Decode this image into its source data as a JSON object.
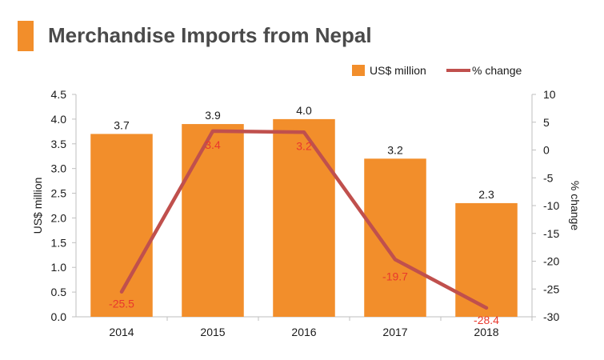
{
  "header": {
    "title": "Merchandise Imports from Nepal"
  },
  "colors": {
    "bar": "#F28E2B",
    "accent": "#F28E2B",
    "line": "#C0504D",
    "line_label": "#E8382D",
    "text": "#1a1a1a",
    "axis": "#bfbfbf"
  },
  "chart_data": {
    "type": "bar",
    "categories": [
      "2014",
      "2015",
      "2016",
      "2017",
      "2018"
    ],
    "series": [
      {
        "name": "US$ million",
        "type": "bar",
        "axis": "left",
        "values": [
          3.7,
          3.9,
          4.0,
          3.2,
          2.3
        ]
      },
      {
        "name": "% change",
        "type": "line",
        "axis": "right",
        "values": [
          -25.5,
          3.4,
          3.2,
          -19.7,
          -28.4
        ]
      }
    ],
    "bar_labels": [
      "3.7",
      "3.9",
      "4.0",
      "3.2",
      "2.3"
    ],
    "line_labels": [
      "-25.5",
      "3.4",
      "3.2",
      "-19.7",
      "-28.4"
    ],
    "ylabel": "US$ million",
    "ylabel_right": "% change",
    "ylim": [
      0,
      4.5
    ],
    "ylim_right": [
      -30,
      10
    ],
    "yticks": [
      "0.0",
      "0.5",
      "1.0",
      "1.5",
      "2.0",
      "2.5",
      "3.0",
      "3.5",
      "4.0",
      "4.5"
    ],
    "yticks_right": [
      "-30",
      "-25",
      "-20",
      "-15",
      "-10",
      "-5",
      "0",
      "5",
      "10"
    ],
    "legend_position": "top-right",
    "grid": false
  }
}
